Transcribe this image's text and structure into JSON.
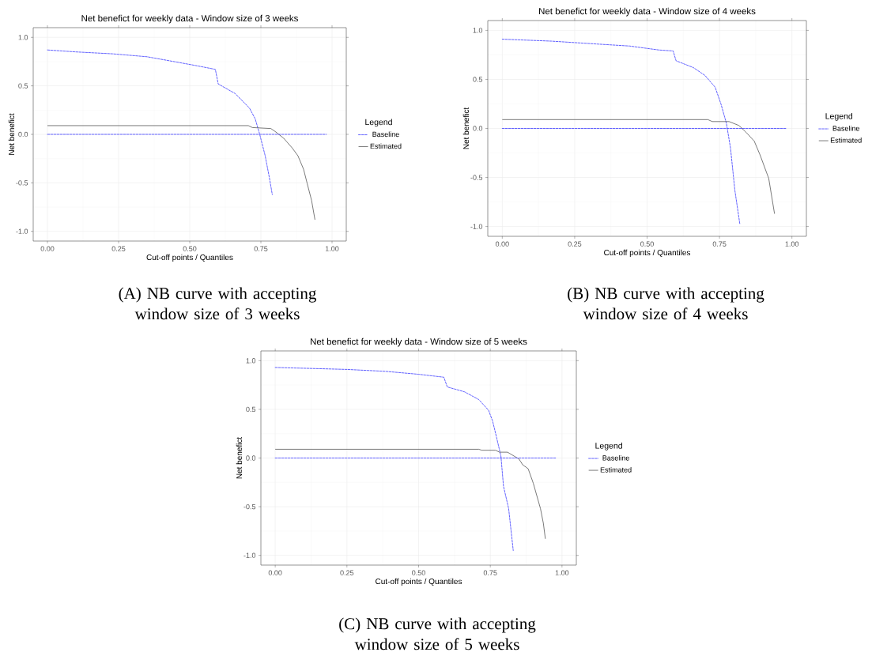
{
  "chart_data": [
    {
      "type": "line",
      "title": "Net benefict for weekly data  - Window size of 3 weeks",
      "xlabel": "Cut-off points / Quantiles",
      "ylabel": "Net benefict",
      "legend_title": "Legend",
      "legend": "right",
      "grid": true,
      "xlim": [
        -0.05,
        1.05
      ],
      "ylim": [
        -1.1,
        1.1
      ],
      "xticks": [
        {
          "value": 0,
          "label": "0.00"
        },
        {
          "value": 0.25,
          "label": "0.25"
        },
        {
          "value": 0.5,
          "label": "0.50"
        },
        {
          "value": 0.75,
          "label": "0.75"
        },
        {
          "value": 1,
          "label": "1.00"
        }
      ],
      "yticks": [
        {
          "value": -1,
          "label": "-1.0"
        },
        {
          "value": -0.5,
          "label": "-0.5"
        },
        {
          "value": 0,
          "label": "0.0"
        },
        {
          "value": 0.5,
          "label": "0.5"
        },
        {
          "value": 1,
          "label": "1.0"
        }
      ],
      "series": [
        {
          "name": "Baseline",
          "color": "#5050ff",
          "line_style": "dashed",
          "x": [
            0,
            0.1,
            0.23,
            0.35,
            0.445,
            0.52,
            0.59,
            0.6,
            0.66,
            0.71,
            0.73,
            0.745,
            0.765,
            0.78,
            0.79
          ],
          "values": [
            0.87,
            0.85,
            0.83,
            0.8,
            0.75,
            0.71,
            0.67,
            0.52,
            0.42,
            0.27,
            0.16,
            0.01,
            -0.22,
            -0.45,
            -0.62
          ]
        },
        {
          "name": "Estimated",
          "color": "#404040",
          "line_style": "solid",
          "x": [
            0,
            0.706,
            0.72,
            0.785,
            0.8,
            0.83,
            0.86,
            0.88,
            0.9,
            0.913,
            0.928,
            0.94
          ],
          "values": [
            0.09,
            0.09,
            0.07,
            0.06,
            0.03,
            -0.04,
            -0.14,
            -0.22,
            -0.36,
            -0.51,
            -0.68,
            -0.88
          ]
        },
        {
          "color": "#5050ff",
          "line_style": "dashed",
          "x": [
            0,
            0.98
          ],
          "values": [
            0,
            0
          ]
        }
      ],
      "annotations": [
        "(A) NB curve with accepting window size of 3 weeks"
      ]
    },
    {
      "type": "line",
      "title": "Net benefict for weekly data  - Window size of 4 weeks",
      "xlabel": "Cut-off points / Quantiles",
      "ylabel": "Net benefict",
      "legend_title": "Legend",
      "legend": "right",
      "grid": true,
      "xlim": [
        -0.05,
        1.05
      ],
      "ylim": [
        -1.1,
        1.1
      ],
      "xticks": [
        {
          "value": 0,
          "label": "0.00"
        },
        {
          "value": 0.25,
          "label": "0.25"
        },
        {
          "value": 0.5,
          "label": "0.50"
        },
        {
          "value": 0.75,
          "label": "0.75"
        },
        {
          "value": 1,
          "label": "1.00"
        }
      ],
      "yticks": [
        {
          "value": -1,
          "label": "-1.0"
        },
        {
          "value": -0.5,
          "label": "-0.5"
        },
        {
          "value": 0,
          "label": "0.0"
        },
        {
          "value": 0.5,
          "label": "0.5"
        },
        {
          "value": 1,
          "label": "1.0"
        }
      ],
      "series": [
        {
          "name": "Baseline",
          "color": "#5050ff",
          "line_style": "dashed",
          "x": [
            0,
            0.17,
            0.33,
            0.44,
            0.54,
            0.59,
            0.6,
            0.66,
            0.7,
            0.735,
            0.755,
            0.774,
            0.788,
            0.803,
            0.82
          ],
          "values": [
            0.91,
            0.89,
            0.86,
            0.84,
            0.8,
            0.79,
            0.69,
            0.62,
            0.54,
            0.42,
            0.25,
            0.05,
            -0.2,
            -0.63,
            -0.97
          ]
        },
        {
          "name": "Estimated",
          "color": "#404040",
          "line_style": "solid",
          "x": [
            0,
            0.71,
            0.725,
            0.783,
            0.817,
            0.842,
            0.87,
            0.89,
            0.92,
            0.94
          ],
          "values": [
            0.09,
            0.09,
            0.07,
            0.07,
            0.03,
            -0.04,
            -0.13,
            -0.27,
            -0.51,
            -0.87
          ]
        },
        {
          "color": "#5050ff",
          "line_style": "dashed",
          "x": [
            0,
            0.98
          ],
          "values": [
            0,
            0
          ]
        }
      ],
      "annotations": [
        "(B) NB curve with accepting window size of 4 weeks"
      ]
    },
    {
      "type": "line",
      "title": "Net benefict for weekly data  - Window size of 5 weeks",
      "xlabel": "Cut-off points / Quantiles",
      "ylabel": "Net benefict",
      "legend_title": "Legend",
      "legend": "right",
      "grid": true,
      "xlim": [
        -0.05,
        1.05
      ],
      "ylim": [
        -1.1,
        1.1
      ],
      "xticks": [
        {
          "value": 0,
          "label": "0.00"
        },
        {
          "value": 0.25,
          "label": "0.25"
        },
        {
          "value": 0.5,
          "label": "0.50"
        },
        {
          "value": 0.75,
          "label": "0.75"
        },
        {
          "value": 1,
          "label": "1.00"
        }
      ],
      "yticks": [
        {
          "value": -1,
          "label": "-1.0"
        },
        {
          "value": -0.5,
          "label": "-0.5"
        },
        {
          "value": 0,
          "label": "0.0"
        },
        {
          "value": 0.5,
          "label": "0.5"
        },
        {
          "value": 1,
          "label": "1.0"
        }
      ],
      "series": [
        {
          "name": "Baseline",
          "color": "#5050ff",
          "line_style": "dashed",
          "x": [
            0,
            0.25,
            0.385,
            0.5,
            0.588,
            0.6,
            0.66,
            0.71,
            0.744,
            0.758,
            0.772,
            0.787,
            0.796,
            0.814,
            0.83
          ],
          "values": [
            0.93,
            0.91,
            0.89,
            0.86,
            0.83,
            0.73,
            0.68,
            0.6,
            0.49,
            0.38,
            0.21,
            0.02,
            -0.29,
            -0.52,
            -0.95
          ]
        },
        {
          "name": "Estimated",
          "color": "#404040",
          "line_style": "solid",
          "x": [
            0,
            0.71,
            0.72,
            0.768,
            0.782,
            0.81,
            0.85,
            0.863,
            0.882,
            0.9,
            0.925,
            0.935,
            0.942
          ],
          "values": [
            0.09,
            0.09,
            0.08,
            0.08,
            0.06,
            0.06,
            -0.01,
            -0.07,
            -0.11,
            -0.26,
            -0.52,
            -0.67,
            -0.83
          ]
        },
        {
          "color": "#5050ff",
          "line_style": "dashed",
          "x": [
            0,
            0.98
          ],
          "values": [
            0,
            0
          ]
        }
      ],
      "annotations": [
        "(C) NB curve with accepting window size of 5 weeks"
      ]
    }
  ]
}
